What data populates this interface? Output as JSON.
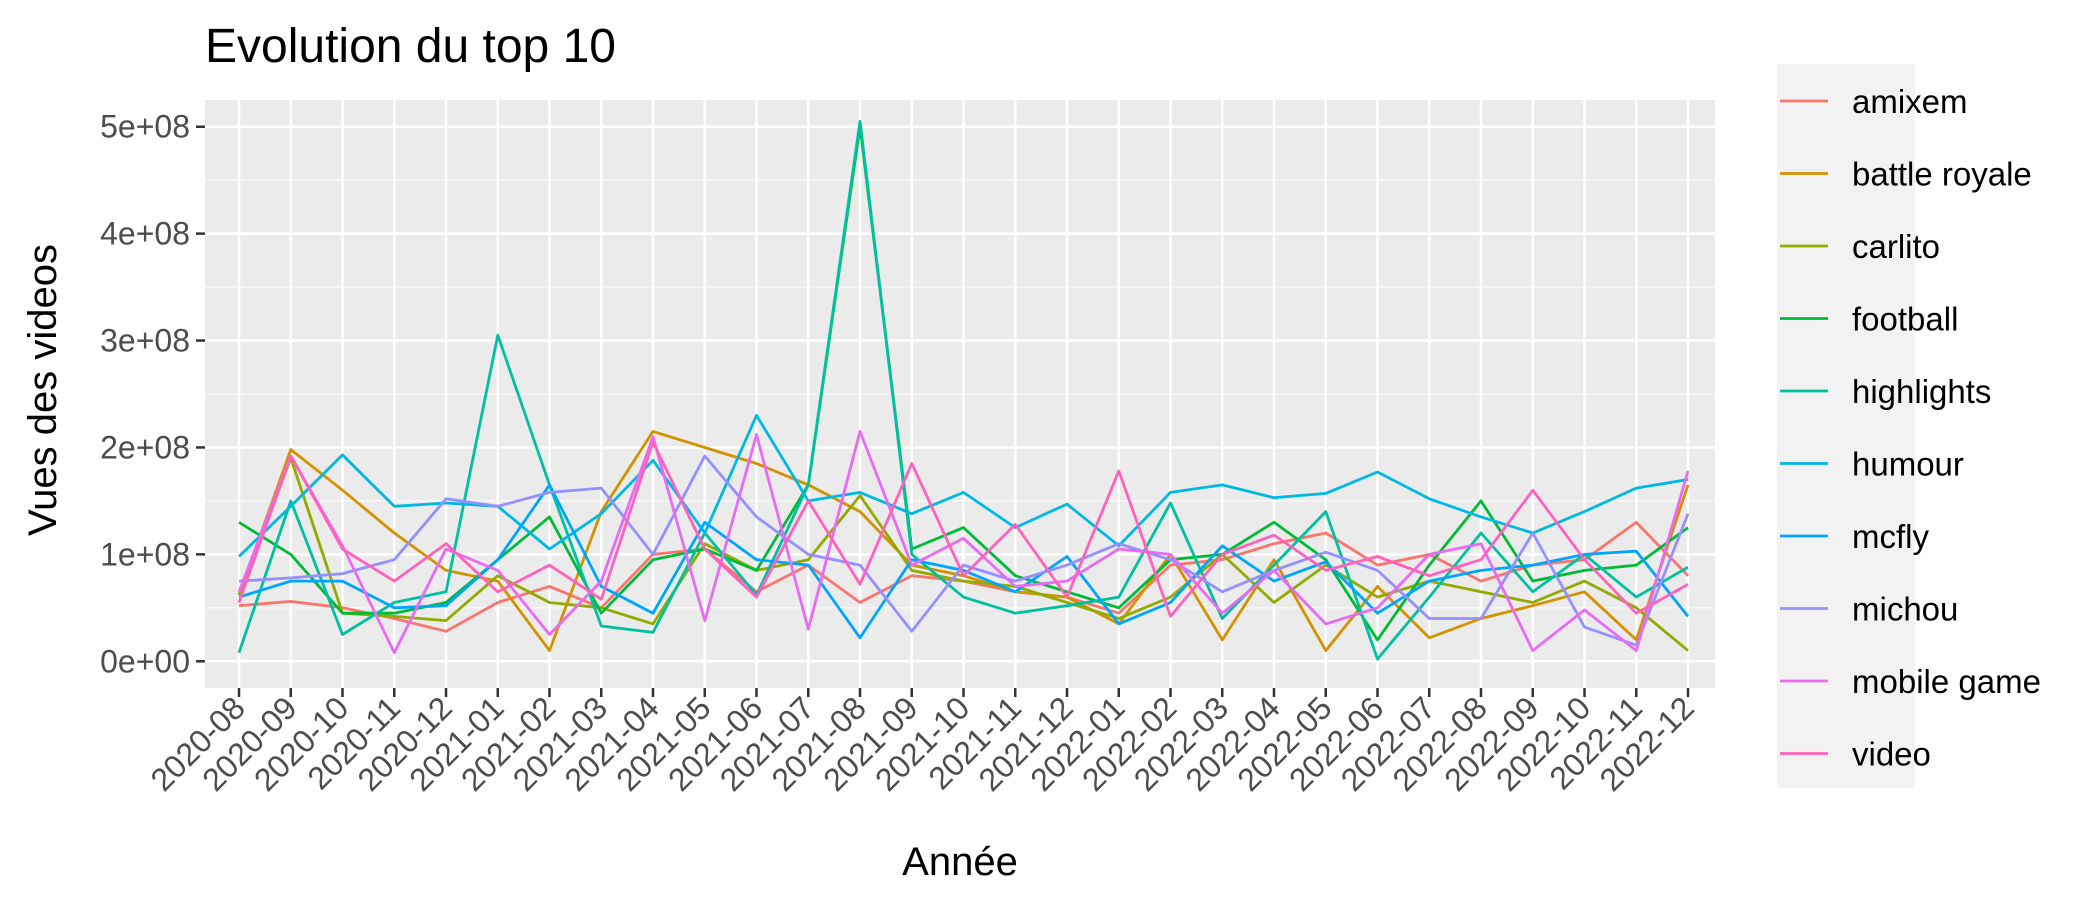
{
  "chart_data": {
    "type": "line",
    "title": "Evolution du top 10",
    "xlabel": "Année",
    "ylabel": "Vues des videos",
    "x": [
      "2020-08",
      "2020-09",
      "2020-10",
      "2020-11",
      "2020-12",
      "2021-01",
      "2021-02",
      "2021-03",
      "2021-04",
      "2021-05",
      "2021-06",
      "2021-07",
      "2021-08",
      "2021-09",
      "2021-10",
      "2021-11",
      "2021-12",
      "2022-01",
      "2022-02",
      "2022-03",
      "2022-04",
      "2022-05",
      "2022-06",
      "2022-07",
      "2022-08",
      "2022-09",
      "2022-10",
      "2022-11",
      "2022-12"
    ],
    "y_ticks": [
      "0e+00",
      "1e+08",
      "2e+08",
      "3e+08",
      "4e+08",
      "5e+08"
    ],
    "ylim": [
      -25000000,
      525000000
    ],
    "grid": true,
    "legend_position": "right",
    "series": [
      {
        "name": "amixem",
        "color": "#F8766D",
        "values": [
          52000000,
          56000000,
          50000000,
          40000000,
          28000000,
          55000000,
          70000000,
          50000000,
          100000000,
          105000000,
          65000000,
          90000000,
          55000000,
          80000000,
          75000000,
          65000000,
          60000000,
          45000000,
          90000000,
          95000000,
          110000000,
          120000000,
          90000000,
          100000000,
          75000000,
          90000000,
          95000000,
          130000000,
          80000000
        ]
      },
      {
        "name": "battle royale",
        "color": "#D39200",
        "values": [
          62000000,
          198000000,
          160000000,
          120000000,
          85000000,
          75000000,
          10000000,
          140000000,
          215000000,
          200000000,
          185000000,
          165000000,
          140000000,
          90000000,
          80000000,
          65000000,
          60000000,
          35000000,
          100000000,
          20000000,
          95000000,
          10000000,
          70000000,
          22000000,
          40000000,
          52000000,
          65000000,
          20000000,
          165000000
        ]
      },
      {
        "name": "carlito",
        "color": "#93AA00",
        "values": [
          62000000,
          190000000,
          45000000,
          42000000,
          38000000,
          80000000,
          55000000,
          50000000,
          35000000,
          110000000,
          85000000,
          95000000,
          155000000,
          85000000,
          75000000,
          70000000,
          55000000,
          40000000,
          60000000,
          100000000,
          55000000,
          90000000,
          60000000,
          75000000,
          65000000,
          55000000,
          75000000,
          50000000,
          10000000
        ]
      },
      {
        "name": "football",
        "color": "#00BA38",
        "values": [
          130000000,
          100000000,
          45000000,
          45000000,
          55000000,
          95000000,
          135000000,
          45000000,
          95000000,
          105000000,
          85000000,
          165000000,
          500000000,
          105000000,
          125000000,
          80000000,
          65000000,
          50000000,
          95000000,
          100000000,
          130000000,
          95000000,
          20000000,
          90000000,
          150000000,
          75000000,
          85000000,
          90000000,
          125000000
        ]
      },
      {
        "name": "highlights",
        "color": "#00C19F",
        "values": [
          8000000,
          150000000,
          25000000,
          55000000,
          65000000,
          305000000,
          165000000,
          33000000,
          27000000,
          120000000,
          62000000,
          165000000,
          505000000,
          100000000,
          60000000,
          45000000,
          52000000,
          60000000,
          148000000,
          40000000,
          90000000,
          140000000,
          2000000,
          60000000,
          120000000,
          65000000,
          100000000,
          60000000,
          88000000
        ]
      },
      {
        "name": "humour",
        "color": "#00B9E3",
        "values": [
          98000000,
          145000000,
          193000000,
          145000000,
          148000000,
          145000000,
          105000000,
          138000000,
          188000000,
          120000000,
          230000000,
          150000000,
          158000000,
          138000000,
          158000000,
          125000000,
          147000000,
          108000000,
          158000000,
          165000000,
          153000000,
          157000000,
          177000000,
          152000000,
          135000000,
          120000000,
          140000000,
          162000000,
          170000000
        ]
      },
      {
        "name": "mcfly",
        "color": "#00A5FF",
        "values": [
          60000000,
          75000000,
          75000000,
          50000000,
          52000000,
          95000000,
          165000000,
          70000000,
          45000000,
          130000000,
          95000000,
          90000000,
          22000000,
          95000000,
          85000000,
          65000000,
          98000000,
          35000000,
          55000000,
          108000000,
          75000000,
          93000000,
          45000000,
          75000000,
          85000000,
          90000000,
          100000000,
          103000000,
          42000000
        ]
      },
      {
        "name": "michou",
        "color": "#9590FF",
        "values": [
          75000000,
          78000000,
          82000000,
          95000000,
          152000000,
          145000000,
          158000000,
          162000000,
          100000000,
          192000000,
          135000000,
          100000000,
          90000000,
          28000000,
          90000000,
          75000000,
          90000000,
          110000000,
          95000000,
          65000000,
          85000000,
          102000000,
          85000000,
          40000000,
          40000000,
          120000000,
          32000000,
          15000000,
          138000000
        ]
      },
      {
        "name": "mobile game",
        "color": "#E76BF3",
        "values": [
          65000000,
          192000000,
          108000000,
          8000000,
          105000000,
          85000000,
          25000000,
          75000000,
          210000000,
          38000000,
          212000000,
          30000000,
          215000000,
          90000000,
          115000000,
          70000000,
          75000000,
          105000000,
          100000000,
          45000000,
          85000000,
          35000000,
          50000000,
          100000000,
          110000000,
          10000000,
          48000000,
          10000000,
          178000000
        ]
      },
      {
        "name": "video",
        "color": "#FF62BC",
        "values": [
          55000000,
          192000000,
          105000000,
          75000000,
          110000000,
          65000000,
          90000000,
          58000000,
          205000000,
          105000000,
          60000000,
          150000000,
          72000000,
          185000000,
          80000000,
          128000000,
          60000000,
          178000000,
          42000000,
          100000000,
          118000000,
          85000000,
          98000000,
          80000000,
          95000000,
          160000000,
          95000000,
          45000000,
          72000000
        ]
      }
    ]
  }
}
